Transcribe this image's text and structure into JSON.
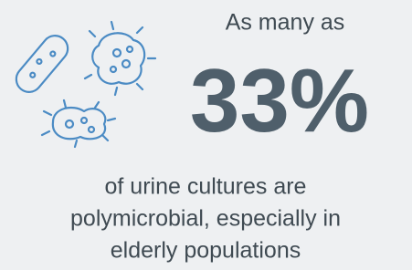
{
  "lead": "As many as",
  "stat": "33%",
  "body_lines": [
    "of urine cultures are",
    "polymicrobial, especially in",
    "elderly populations"
  ]
}
